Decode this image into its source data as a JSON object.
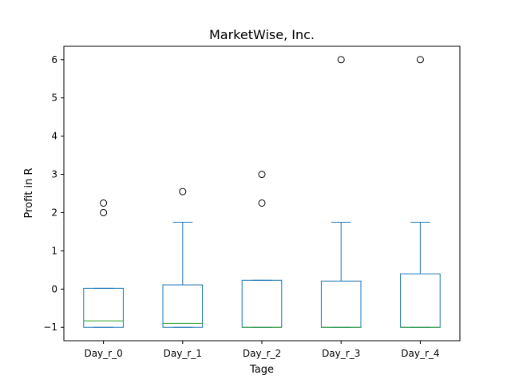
{
  "chart_data": {
    "type": "box",
    "title": "MarketWise, Inc.",
    "xlabel": "Tage",
    "ylabel": "Profit in R",
    "ylim": [
      -1.35,
      6.35
    ],
    "yticks": [
      -1,
      0,
      1,
      2,
      3,
      4,
      5,
      6
    ],
    "grid": false,
    "colors": {
      "box": "#1f77b4",
      "median": "#2ca02c",
      "flier": "#000000"
    },
    "categories": [
      "Day_r_0",
      "Day_r_1",
      "Day_r_2",
      "Day_r_3",
      "Day_r_4"
    ],
    "boxes": [
      {
        "category": "Day_r_0",
        "whisker_low": -1.0,
        "q1": -1.0,
        "median": -0.83,
        "q3": 0.02,
        "whisker_high": 0.02,
        "outliers": [
          2.0,
          2.25
        ]
      },
      {
        "category": "Day_r_1",
        "whisker_low": -1.0,
        "q1": -1.0,
        "median": -0.9,
        "q3": 0.11,
        "whisker_high": 1.75,
        "outliers": [
          2.55
        ]
      },
      {
        "category": "Day_r_2",
        "whisker_low": -1.0,
        "q1": -1.0,
        "median": -1.0,
        "q3": 0.23,
        "whisker_high": 0.23,
        "outliers": [
          2.25,
          3.0
        ]
      },
      {
        "category": "Day_r_3",
        "whisker_low": -1.0,
        "q1": -1.0,
        "median": -1.0,
        "q3": 0.21,
        "whisker_high": 1.75,
        "outliers": [
          6.0
        ]
      },
      {
        "category": "Day_r_4",
        "whisker_low": -1.0,
        "q1": -1.0,
        "median": -1.0,
        "q3": 0.4,
        "whisker_high": 1.75,
        "outliers": [
          6.0
        ]
      }
    ]
  }
}
